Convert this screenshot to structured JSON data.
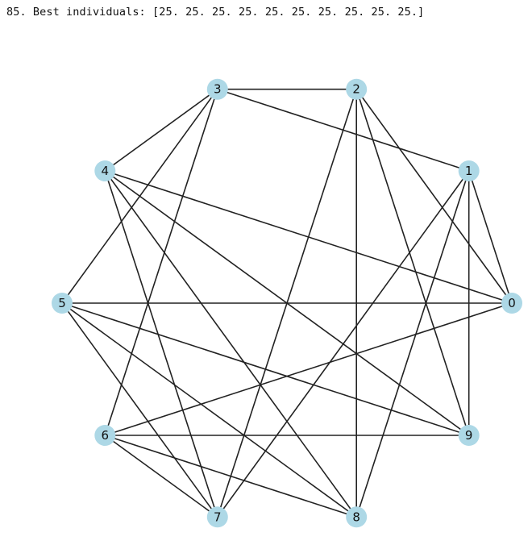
{
  "console_output": "85. Best individuals: [25. 25. 25. 25. 25. 25. 25. 25. 25. 25.]",
  "graph": {
    "node_color": "#add8e6",
    "edge_color": "#222222",
    "nodes": [
      {
        "id": 0,
        "label": "0"
      },
      {
        "id": 1,
        "label": "1"
      },
      {
        "id": 2,
        "label": "2"
      },
      {
        "id": 3,
        "label": "3"
      },
      {
        "id": 4,
        "label": "4"
      },
      {
        "id": 5,
        "label": "5"
      },
      {
        "id": 6,
        "label": "6"
      },
      {
        "id": 7,
        "label": "7"
      },
      {
        "id": 8,
        "label": "8"
      },
      {
        "id": 9,
        "label": "9"
      }
    ],
    "edges": [
      [
        0,
        1
      ],
      [
        0,
        2
      ],
      [
        0,
        4
      ],
      [
        0,
        5
      ],
      [
        0,
        6
      ],
      [
        1,
        3
      ],
      [
        1,
        7
      ],
      [
        1,
        8
      ],
      [
        1,
        9
      ],
      [
        2,
        3
      ],
      [
        2,
        7
      ],
      [
        2,
        8
      ],
      [
        2,
        9
      ],
      [
        3,
        4
      ],
      [
        3,
        5
      ],
      [
        3,
        6
      ],
      [
        4,
        7
      ],
      [
        4,
        8
      ],
      [
        4,
        9
      ],
      [
        5,
        7
      ],
      [
        5,
        8
      ],
      [
        5,
        9
      ],
      [
        6,
        7
      ],
      [
        6,
        8
      ],
      [
        6,
        9
      ]
    ]
  }
}
